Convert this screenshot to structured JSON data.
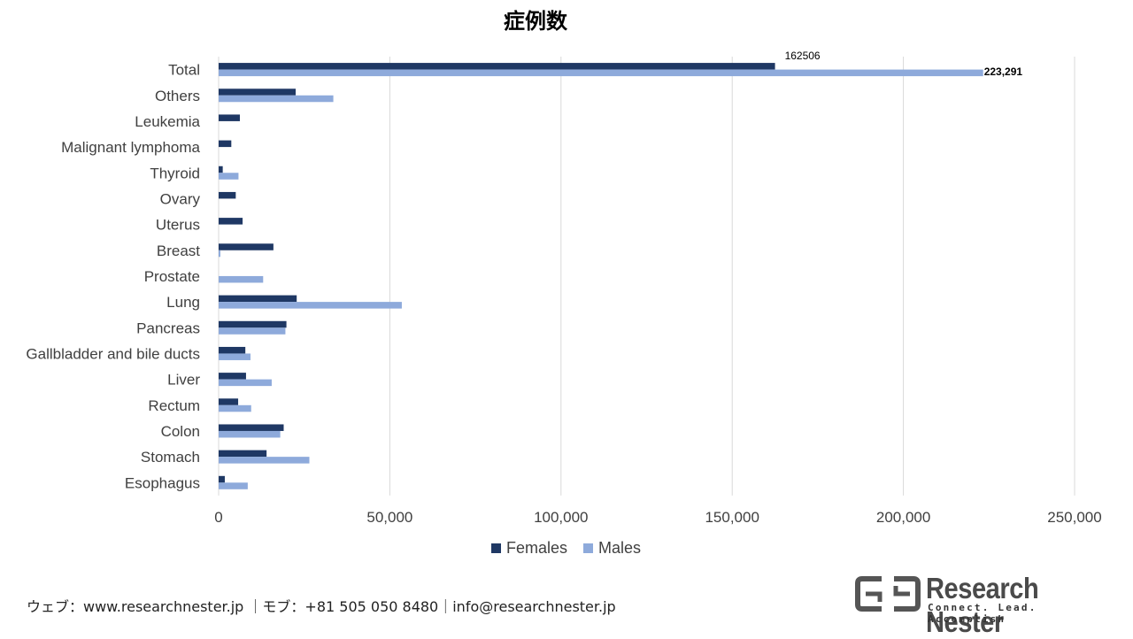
{
  "chart_data": {
    "type": "bar",
    "orientation": "horizontal",
    "title": "症例数",
    "categories": [
      "Total",
      "Others",
      "Leukemia",
      "Malignant lymphoma",
      "Thyroid",
      "Ovary",
      "Uterus",
      "Breast",
      "Prostate",
      "Lung",
      "Pancreas",
      "Gallbladder and bile ducts",
      "Liver",
      "Rectum",
      "Colon",
      "Stomach",
      "Esophagus"
    ],
    "series": [
      {
        "name": "Females",
        "color": "#1f3864",
        "values": [
          162506,
          22500,
          6200,
          3700,
          1200,
          5000,
          7000,
          16000,
          0,
          22800,
          19800,
          7800,
          8000,
          5700,
          19000,
          14000,
          1800
        ]
      },
      {
        "name": "Males",
        "color": "#8eaadb",
        "values": [
          223291,
          33500,
          0,
          0,
          5800,
          0,
          0,
          500,
          13000,
          53500,
          19500,
          9300,
          15500,
          9500,
          18000,
          26500,
          8500
        ]
      }
    ],
    "data_labels": [
      {
        "category": "Total",
        "series": "Females",
        "text": "162506"
      },
      {
        "category": "Total",
        "series": "Males",
        "text": "223,291"
      }
    ],
    "x_ticks": [
      "0",
      "50,000",
      "100,000",
      "150,000",
      "200,000",
      "250,000"
    ],
    "xlim": [
      0,
      250000
    ],
    "grid": "vertical",
    "legend_position": "bottom"
  },
  "footer": {
    "text": "ウェブ：www.researchnester.jp ｜モブ：+81 505 050 8480｜info@researchnester.jp"
  },
  "logo": {
    "name": "Research Nester",
    "tagline": "Connect. Lead. Accomplish"
  }
}
